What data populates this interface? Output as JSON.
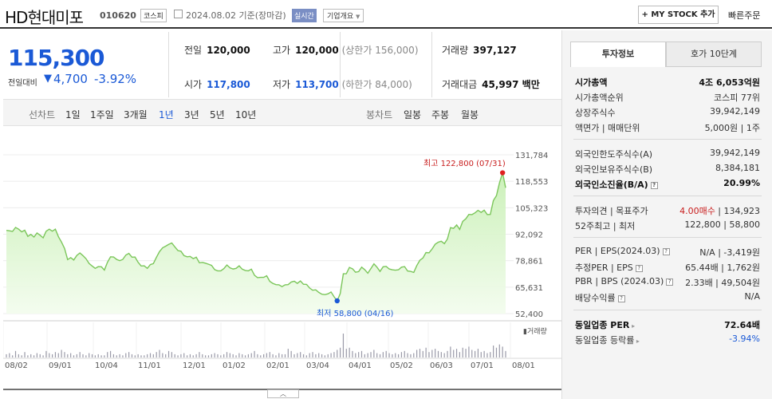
{
  "header": {
    "stock_name": "HD현대미포",
    "stock_code": "010620",
    "market": "코스피",
    "date_text": "2024.08.02 기준(장마감)",
    "realtime_label": "실시간",
    "company_overview_label": "기업개요",
    "my_stock_label": "+ MY STOCK 추가",
    "quick_order_label": "빠른주문"
  },
  "price": {
    "current": "115,300",
    "change_label": "전일대비",
    "change_arrow": "▼",
    "change_value": "4,700",
    "change_pct": "-3.92%"
  },
  "quote": {
    "prev_close_label": "전일",
    "prev_close": "120,000",
    "high_label": "고가",
    "high": "120,000",
    "upper_limit": "(상한가 156,000)",
    "volume_label": "거래량",
    "volume": "397,127",
    "open_label": "시가",
    "open": "117,800",
    "low_label": "저가",
    "low": "113,700",
    "lower_limit": "(하한가 84,000)",
    "amount_label": "거래대금",
    "amount": "45,997 백만"
  },
  "period_tabs": {
    "line_chart_label": "선차트",
    "items": [
      "1일",
      "1주일",
      "3개월",
      "1년",
      "3년",
      "5년",
      "10년"
    ],
    "active": "1년",
    "candle_label": "봉차트",
    "candle_items": [
      "일봉",
      "주봉",
      "월봉"
    ]
  },
  "chart_annotations": {
    "high": "최고 122,800 (07/31)",
    "low": "최저 58,800 (04/16)",
    "volume_label": "▮거래량",
    "toggle": "︿"
  },
  "chart_data": {
    "type": "area",
    "title": "",
    "y_ticks": [
      "131,784",
      "118,553",
      "105,323",
      "92,092",
      "78,861",
      "65,631",
      "52,400"
    ],
    "ylim": [
      52400,
      131784
    ],
    "x_ticks": [
      "08/02",
      "09/01",
      "10/04",
      "11/01",
      "12/01",
      "01/02",
      "02/01",
      "03/04",
      "04/01",
      "05/02",
      "06/03",
      "07/01",
      "08/01"
    ],
    "series": [
      {
        "values": [
          94000,
          93800,
          93500,
          95500,
          94600,
          93300,
          94100,
          91000,
          92000,
          90700,
          92700,
          91600,
          90300,
          93600,
          94600,
          93600,
          94600,
          90800,
          88200,
          84900,
          79400,
          80400,
          79200,
          81500,
          82700,
          81400,
          79800,
          77500,
          76200,
          75000,
          75900,
          75800,
          74200,
          78000,
          80800,
          80700,
          79500,
          78900,
          79500,
          81700,
          82500,
          80600,
          80700,
          78100,
          76200,
          76300,
          75000,
          76900,
          77400,
          80600,
          83400,
          85300,
          86100,
          87000,
          87700,
          85800,
          83900,
          83600,
          81400,
          80800,
          81000,
          79900,
          80600,
          77800,
          78000,
          77600,
          77100,
          76500,
          74400,
          73800,
          73800,
          74900,
          76700,
          75300,
          74700,
          75000,
          76300,
          74600,
          74000,
          73800,
          74600,
          71600,
          70400,
          70500,
          70500,
          71300,
          68500,
          67500,
          66900,
          66800,
          65900,
          66800,
          66900,
          68200,
          68600,
          67500,
          68700,
          67100,
          67000,
          65200,
          64100,
          64300,
          63000,
          62100,
          61900,
          62300,
          63200,
          60800,
          58800,
          62400,
          72300,
          72400,
          75500,
          74800,
          73100,
          73400,
          75600,
          74400,
          72600,
          74900,
          77300,
          75600,
          73500,
          75800,
          76000,
          74700,
          74300,
          74100,
          74300,
          75600,
          75900,
          73700,
          73500,
          73000,
          76400,
          79100,
          80200,
          82900,
          82800,
          84700,
          87100,
          88100,
          88600,
          87400,
          89700,
          95400,
          95000,
          96700,
          94500,
          98500,
          99800,
          102000,
          101900,
          102800,
          104000,
          103000,
          104100,
          101900,
          102000,
          108900,
          111400,
          117800,
          122800,
          115300
        ]
      }
    ],
    "volume": [
      3,
      4,
      2,
      6,
      3,
      2,
      5,
      2,
      3,
      2,
      4,
      3,
      2,
      6,
      4,
      3,
      5,
      4,
      7,
      5,
      3,
      4,
      2,
      3,
      5,
      3,
      2,
      4,
      3,
      2,
      3,
      2,
      2,
      5,
      6,
      3,
      2,
      3,
      2,
      4,
      5,
      3,
      2,
      3,
      2,
      2,
      3,
      4,
      3,
      5,
      7,
      4,
      3,
      6,
      5,
      3,
      2,
      3,
      4,
      2,
      3,
      2,
      3,
      5,
      3,
      2,
      2,
      3,
      4,
      3,
      2,
      3,
      5,
      4,
      3,
      2,
      4,
      3,
      2,
      3,
      4,
      6,
      3,
      2,
      3,
      4,
      5,
      3,
      2,
      4,
      3,
      3,
      8,
      6,
      3,
      4,
      5,
      3,
      2,
      4,
      5,
      3,
      4,
      3,
      2,
      3,
      4,
      5,
      7,
      9,
      22,
      8,
      9,
      6,
      4,
      5,
      6,
      3,
      4,
      5,
      7,
      4,
      3,
      5,
      6,
      4,
      3,
      4,
      3,
      5,
      6,
      4,
      3,
      4,
      7,
      8,
      6,
      9,
      5,
      7,
      8,
      6,
      5,
      4,
      6,
      10,
      7,
      8,
      5,
      9,
      8,
      10,
      7,
      6,
      8,
      5,
      6,
      4,
      5,
      11,
      9,
      12,
      10,
      6
    ]
  },
  "right_panel": {
    "tabs": [
      "투자정보",
      "호가 10단계"
    ],
    "active_tab": "투자정보",
    "rows": [
      {
        "key": "시가총액",
        "value": "4조 6,053억원",
        "style": "bold"
      },
      {
        "key": "시가총액순위",
        "value": "코스피 77위"
      },
      {
        "key": "상장주식수",
        "value": "39,942,149"
      },
      {
        "key": "액면가 | 매매단위",
        "value": "5,000원 | 1주"
      },
      {
        "key": "외국인한도주식수(A)",
        "value": "39,942,149"
      },
      {
        "key": "외국인보유주식수(B)",
        "value": "8,384,181"
      },
      {
        "key": "외국인소진율(B/A)",
        "value": "20.99%",
        "style": "bold",
        "q": true
      },
      {
        "key": "투자의견 | 목표주가",
        "value_red": "4.00매수",
        "value": " | 134,923"
      },
      {
        "key": "52주최고 | 최저",
        "value": "122,800 | 58,800"
      },
      {
        "key": "PER | EPS(2024.03)",
        "value": "N/A | -3,419원",
        "q": true
      },
      {
        "key": "추정PER | EPS",
        "value": "65.44배 | 1,762원",
        "q": true
      },
      {
        "key": "PBR | BPS (2024.03)",
        "value": "2.33배 | 49,504원",
        "q": true
      },
      {
        "key": "배당수익률",
        "value": "N/A",
        "q": true
      },
      {
        "key": "동일업종 PER",
        "value": "72.64배",
        "style": "bold",
        "arrow": true
      },
      {
        "key": "동일업종 등락률",
        "value": "-3.94%",
        "style": "blue",
        "arrow": true
      }
    ]
  }
}
